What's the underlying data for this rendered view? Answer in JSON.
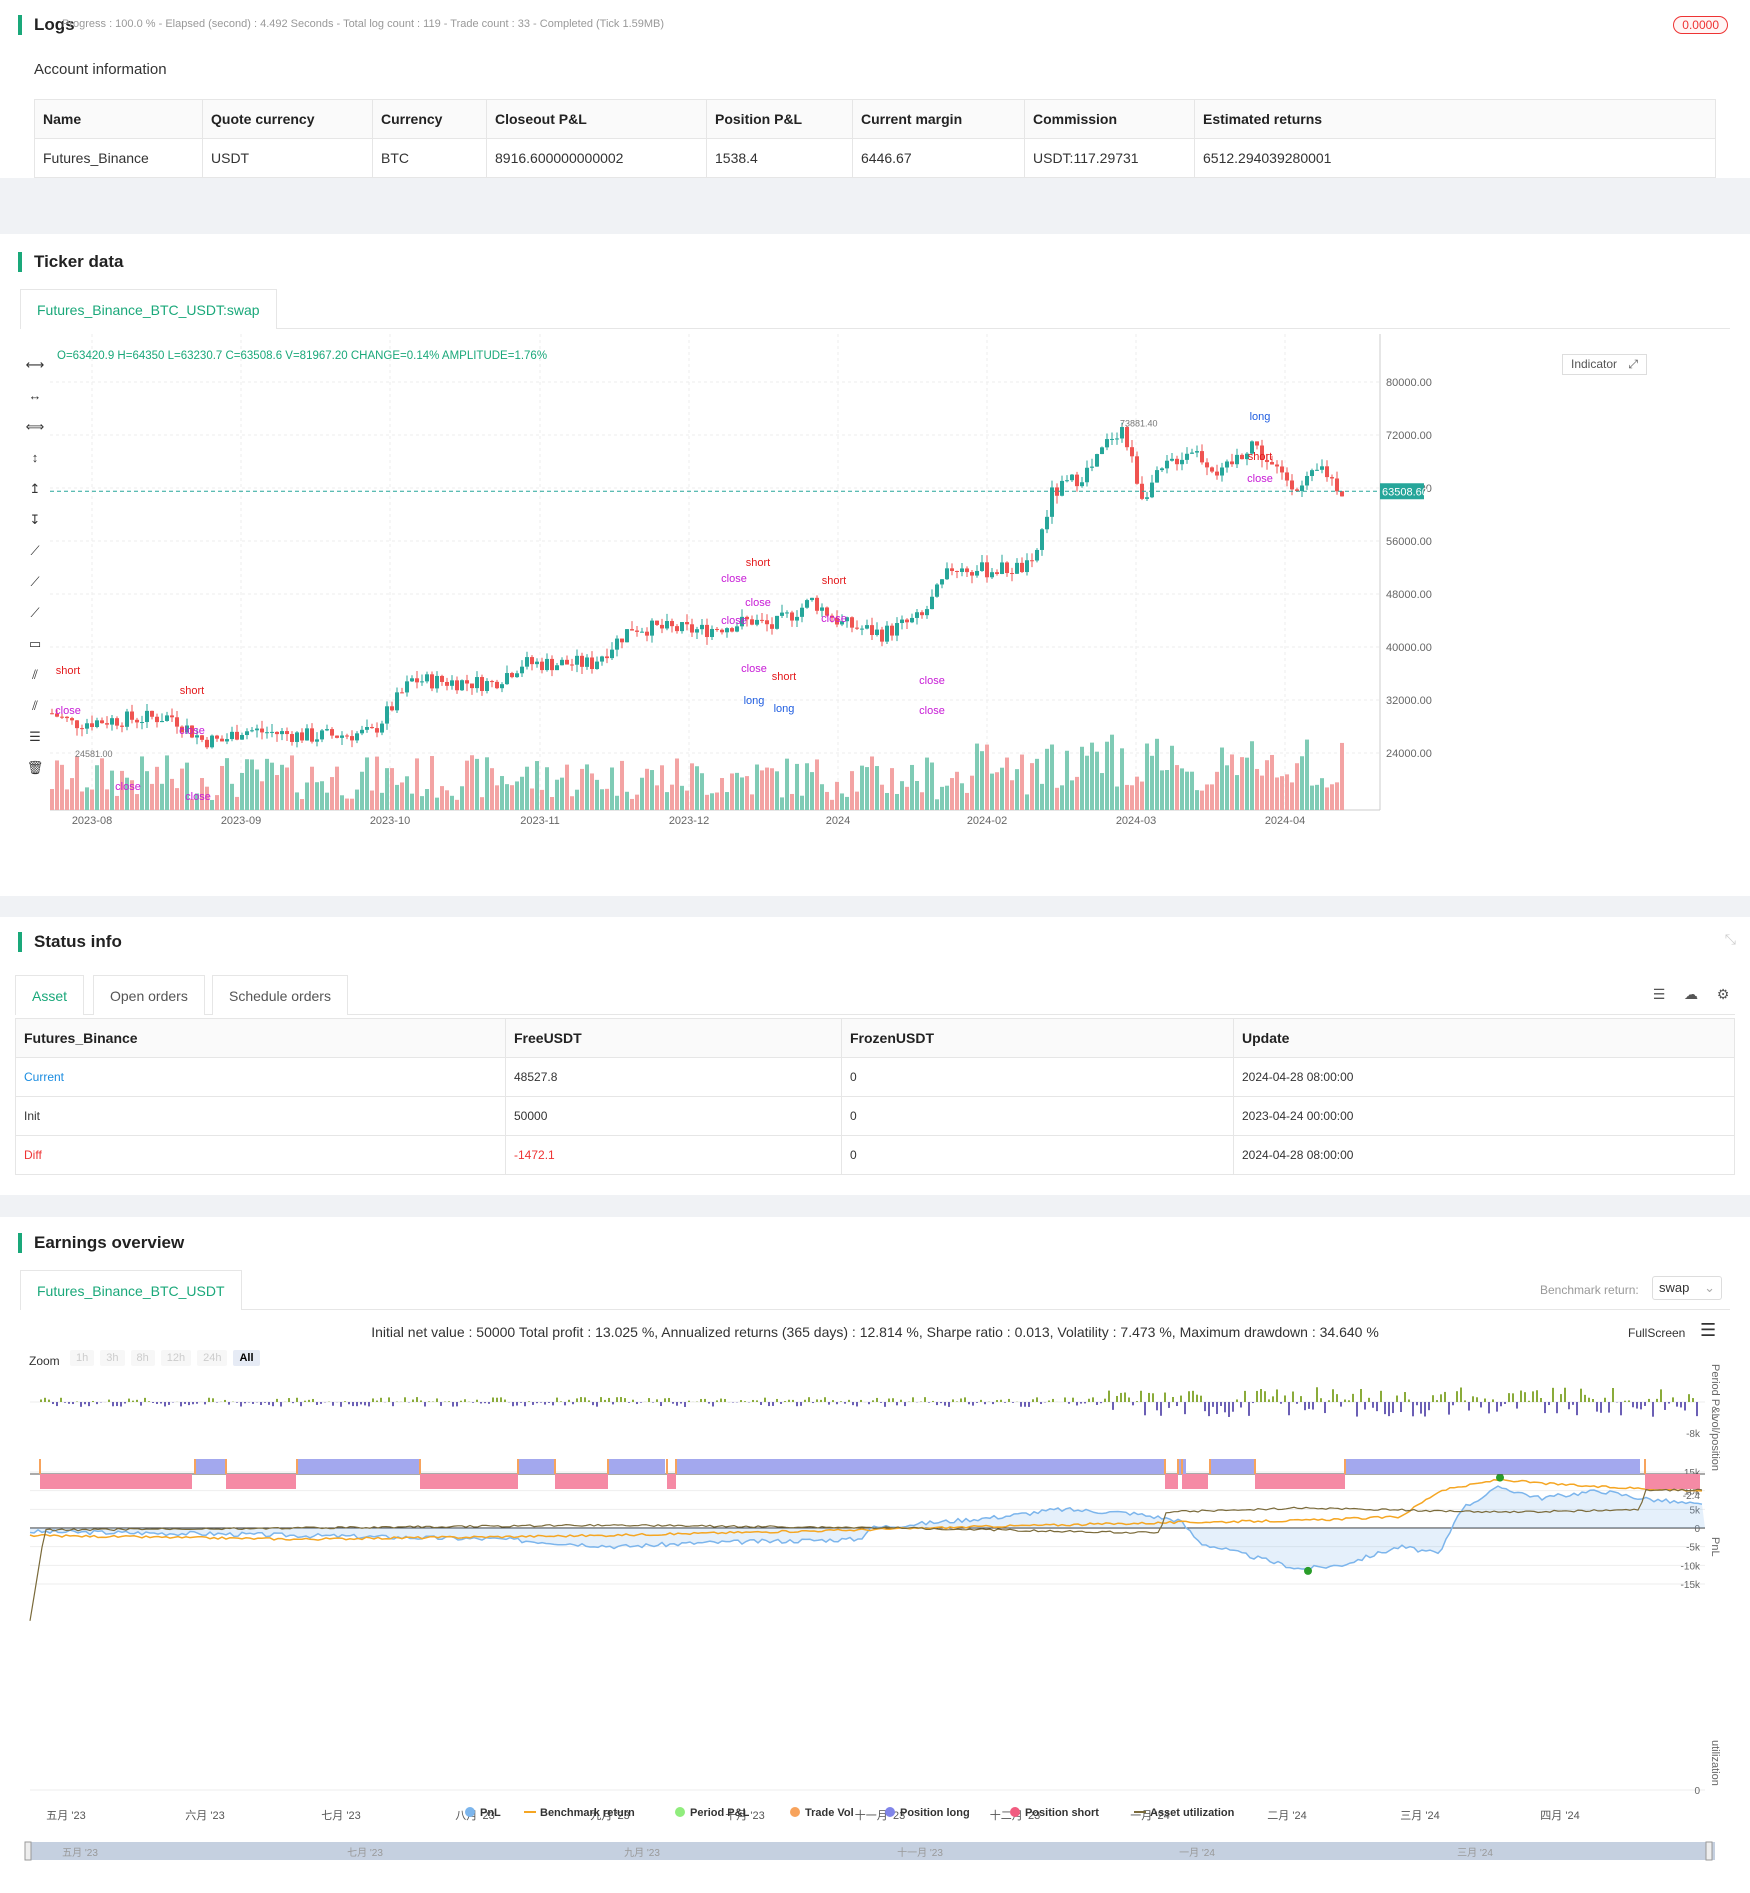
{
  "logs": {
    "title": "Logs",
    "stats": "Progress : 100.0 % - Elapsed (second) : 4.492  Seconds - Total log count : 119 - Trade count : 33 - Completed (Tick 1.59MB)",
    "badge": "0.0000",
    "account_title": "Account information",
    "headers": [
      "Name",
      "Quote currency",
      "Currency",
      "Closeout P&L",
      "Position P&L",
      "Current margin",
      "Commission",
      "Estimated returns"
    ],
    "row": [
      "Futures_Binance",
      "USDT",
      "BTC",
      "8916.600000000002",
      "1538.4",
      "6446.67",
      "USDT:117.29731",
      "6512.294039280001"
    ]
  },
  "ticker": {
    "title": "Ticker data",
    "tab": "Futures_Binance_BTC_USDT:swap",
    "ohlc": "O=63420.9 H=64350 L=63230.7 C=63508.6 V=81967.20 CHANGE=0.14% AMPLITUDE=1.76%",
    "indicator": "Indicator",
    "price_tag": "63508.60",
    "high_label": "73881.40",
    "low_label": "24581.00"
  },
  "chart_data": {
    "type": "candlestick",
    "y_ticks": [
      "80000.00",
      "72000.00",
      "64000.00",
      "56000.00",
      "48000.00",
      "40000.00",
      "32000.00",
      "24000.00"
    ],
    "x_ticks": [
      "2023-08",
      "2023-09",
      "2023-10",
      "2023-11",
      "2023-12",
      "2024",
      "2024-02",
      "2024-03",
      "2024-04"
    ],
    "last_price": 63508.6,
    "high": 73881.4,
    "low": 24581.0,
    "ylim": [
      21000,
      83000
    ],
    "signals": [
      {
        "label": "short"
      },
      {
        "label": "close"
      },
      {
        "label": "short"
      },
      {
        "label": "close"
      },
      {
        "label": "close"
      },
      {
        "label": "close"
      },
      {
        "label": "close"
      },
      {
        "label": "short"
      },
      {
        "label": "short"
      },
      {
        "label": "close"
      },
      {
        "label": "close"
      },
      {
        "label": "close"
      },
      {
        "label": "long"
      },
      {
        "label": "close"
      },
      {
        "label": "long"
      },
      {
        "label": "short"
      },
      {
        "label": "close"
      },
      {
        "label": "close"
      },
      {
        "label": "long"
      },
      {
        "label": "short"
      },
      {
        "label": "close"
      }
    ]
  },
  "status": {
    "title": "Status info",
    "tabs": [
      "Asset",
      "Open orders",
      "Schedule orders"
    ],
    "headers": [
      "Futures_Binance",
      "FreeUSDT",
      "FrozenUSDT",
      "Update"
    ],
    "rows": [
      [
        "Current",
        "48527.8",
        "0",
        "2024-04-28 08:00:00"
      ],
      [
        "Init",
        "50000",
        "0",
        "2023-04-24 00:00:00"
      ],
      [
        "Diff",
        "-1472.1",
        "0",
        "2024-04-28 08:00:00"
      ]
    ]
  },
  "earnings": {
    "title": "Earnings overview",
    "tab": "Futures_Binance_BTC_USDT",
    "bench_label": "Benchmark return:",
    "bench_value": "swap",
    "summary": "Initial net value : 50000 Total profit : 13.025 %, Annualized returns (365 days) : 12.814 %, Sharpe ratio : 0.013, Volatility : 7.473 %, Maximum drawdown : 34.640 %",
    "fullscreen": "FullScreen",
    "zoom": "Zoom",
    "zoom_opts": [
      "1h",
      "3h",
      "8h",
      "12h",
      "24h",
      "All"
    ],
    "pnl_ticks": [
      "15k",
      "10k",
      "5k",
      "0",
      "-5k",
      "-10k",
      "-15k"
    ],
    "axis_pnl": "PnL",
    "axis_period": "Period P&L",
    "axis_vol": "vol/position",
    "axis_util": "utilization",
    "period_tick": "-8k",
    "vol_tick": "-2.4",
    "util_tick": "0",
    "months": [
      "五月 '23",
      "六月 '23",
      "七月 '23",
      "八月 '23",
      "九月 '23",
      "十月 '23",
      "十一月 '23",
      "十二月 '23",
      "一月 '24",
      "二月 '24",
      "三月 '24",
      "四月 '24"
    ],
    "nav_months": [
      "五月 '23",
      "七月 '23",
      "九月 '23",
      "十一月 '23",
      "一月 '24",
      "三月 '24"
    ],
    "legend": [
      "PnL",
      "Benchmark return",
      "Period P&L",
      "Trade Vol",
      "Position long",
      "Position short",
      "Asset utilization"
    ],
    "colors": {
      "pnl": "#7cb5ec",
      "bench": "#f7a35c",
      "period": "#90ed7d",
      "vol": "#f7a35c",
      "long": "#8085e9",
      "short": "#f15c80",
      "util": "#7a6a3a"
    }
  }
}
